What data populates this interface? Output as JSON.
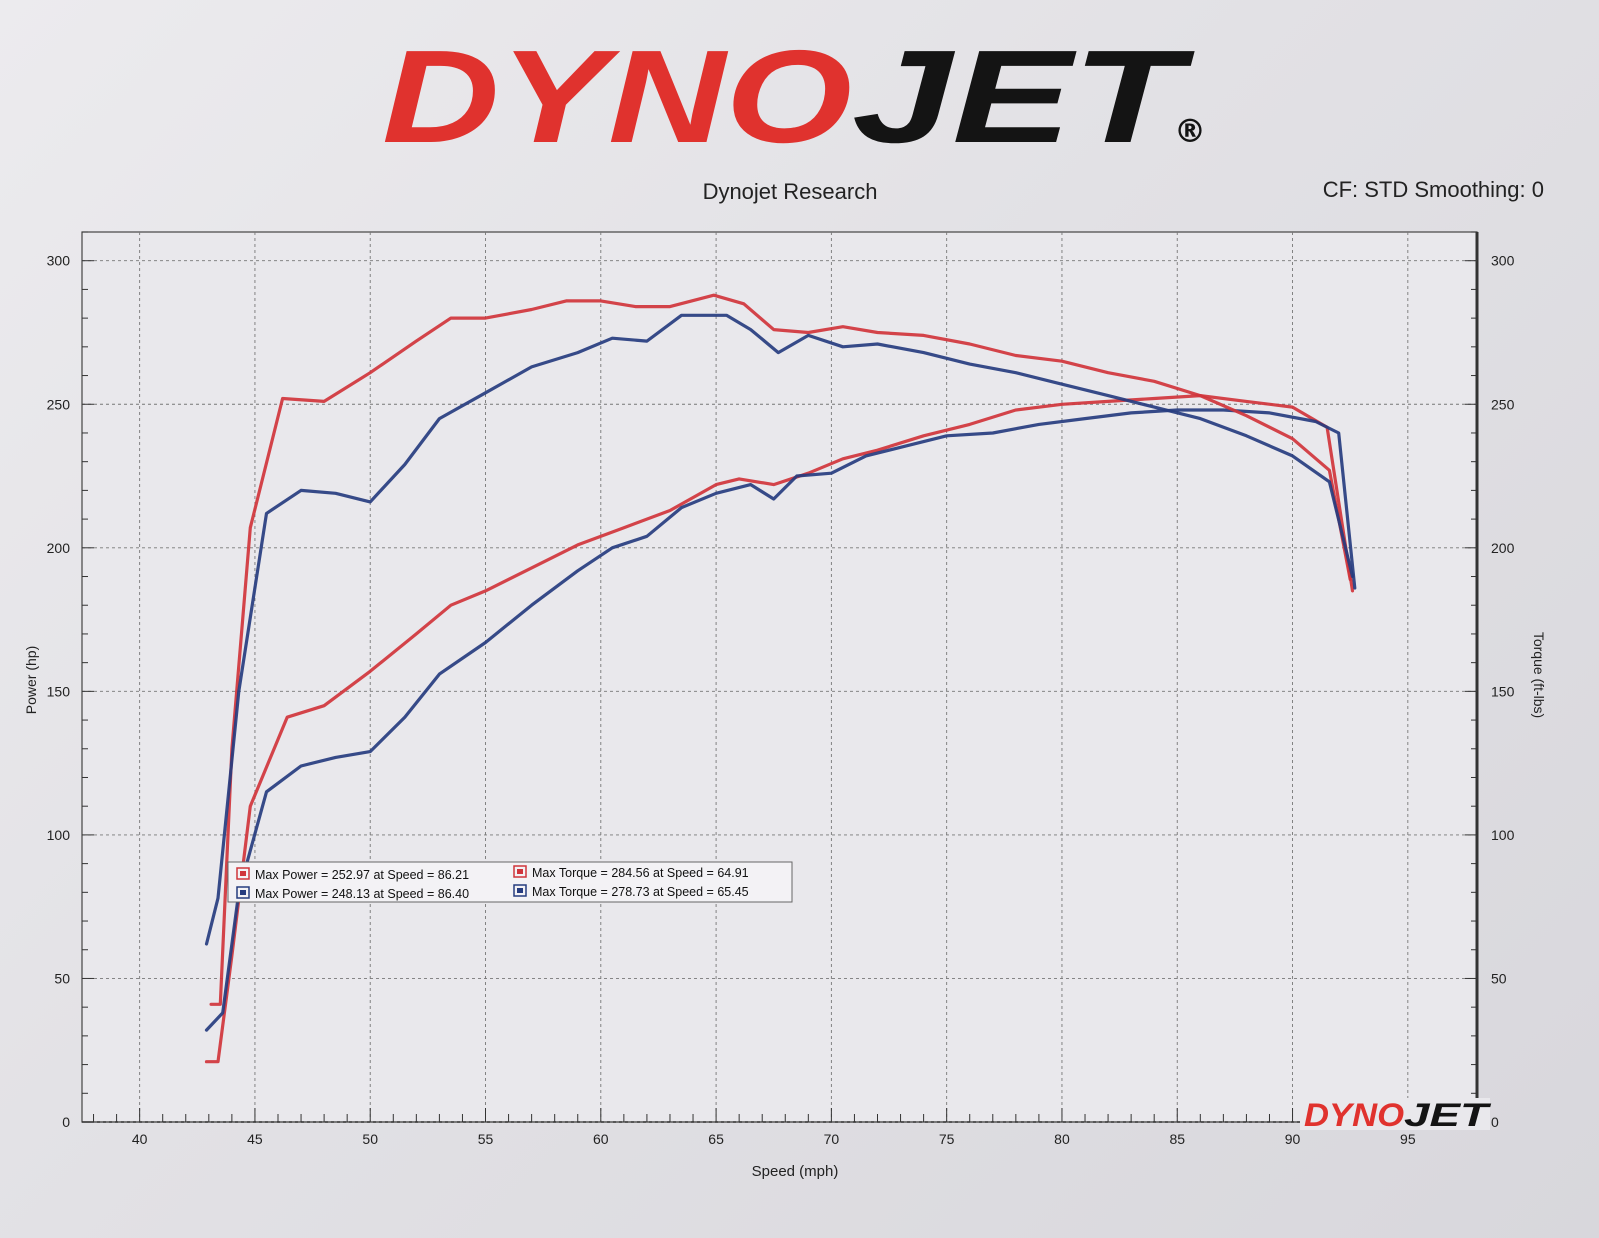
{
  "header": {
    "brand_left": "DYNO",
    "brand_right": "JET",
    "registered_mark": "®",
    "subtitle": "Dynojet Research",
    "settings": "CF: STD Smoothing: 0"
  },
  "footer_logo": {
    "left": "DYNO",
    "right": "JET"
  },
  "colors": {
    "red": "#d0343b",
    "blue": "#263c7f",
    "brand_red": "#e0322e",
    "brand_black": "#141414"
  },
  "chart_data": {
    "type": "line",
    "xlabel": "Speed (mph)",
    "ylabel_left": "Power (hp)",
    "ylabel_right": "Torque (ft-lbs)",
    "xlim": [
      37.5,
      98
    ],
    "ylim": [
      0,
      310
    ],
    "grid": true,
    "x_ticks": [
      40,
      45,
      50,
      55,
      60,
      65,
      70,
      75,
      80,
      85,
      90,
      95
    ],
    "y_ticks": [
      0,
      50,
      100,
      150,
      200,
      250,
      300
    ],
    "legend": {
      "placement": "center-left",
      "entries": [
        {
          "text": "Max Power = 252.97 at Speed = 86.21",
          "color": "#d0343b"
        },
        {
          "text": "Max Torque = 284.56 at Speed = 64.91",
          "color": "#d0343b"
        },
        {
          "text": "Max Power = 248.13 at Speed = 86.40",
          "color": "#263c7f"
        },
        {
          "text": "Max Torque = 278.73 at Speed = 65.45",
          "color": "#263c7f"
        }
      ]
    },
    "series": [
      {
        "color": "#d0343b",
        "kind": "power",
        "x": [
          42.9,
          43.4,
          44.0,
          44.8,
          46.4,
          48.0,
          50.0,
          52.0,
          53.5,
          55.0,
          57.0,
          59.0,
          61.0,
          63.0,
          65.0,
          66.0,
          67.5,
          69.0,
          70.5,
          72.0,
          74.0,
          76.0,
          78.0,
          80.0,
          82.0,
          84.0,
          86.0,
          88.0,
          90.0,
          91.5,
          92.6
        ],
        "values": [
          21,
          21,
          58,
          110,
          141,
          145,
          157,
          170,
          180,
          185,
          193,
          201,
          207,
          213,
          222,
          224,
          222,
          226,
          231,
          234,
          239,
          243,
          248,
          250,
          251,
          252,
          253,
          251,
          249,
          242,
          185
        ]
      },
      {
        "color": "#263c7f",
        "kind": "power",
        "x": [
          42.9,
          43.6,
          44.3,
          45.5,
          47.0,
          48.5,
          50.0,
          51.5,
          53.0,
          55.0,
          57.0,
          59.0,
          60.5,
          62.0,
          63.5,
          65.0,
          66.5,
          67.5,
          68.5,
          70.0,
          71.5,
          73.0,
          75.0,
          77.0,
          79.0,
          81.0,
          83.0,
          85.0,
          87.0,
          89.0,
          91.0,
          92.0,
          92.7
        ],
        "values": [
          32,
          38,
          80,
          115,
          124,
          127,
          129,
          141,
          156,
          167,
          180,
          192,
          200,
          204,
          214,
          219,
          222,
          217,
          225,
          226,
          232,
          235,
          239,
          240,
          243,
          245,
          247,
          248,
          248,
          247,
          244,
          240,
          186
        ]
      },
      {
        "color": "#d0343b",
        "kind": "torque",
        "x": [
          43.1,
          43.5,
          44.0,
          44.8,
          46.2,
          48.0,
          50.0,
          52.0,
          53.5,
          55.0,
          57.0,
          58.5,
          60.0,
          61.5,
          63.0,
          64.9,
          66.2,
          67.5,
          69.0,
          70.5,
          72.0,
          74.0,
          76.0,
          78.0,
          80.0,
          82.0,
          84.0,
          86.0,
          88.0,
          90.0,
          91.6,
          92.5
        ],
        "values": [
          41,
          41,
          130,
          207,
          252,
          251,
          261,
          272,
          280,
          280,
          283,
          286,
          286,
          284,
          284,
          288,
          285,
          276,
          275,
          277,
          275,
          274,
          271,
          267,
          265,
          261,
          258,
          253,
          246,
          238,
          227,
          189
        ]
      },
      {
        "color": "#263c7f",
        "kind": "torque",
        "x": [
          42.9,
          43.4,
          44.3,
          45.5,
          47.0,
          48.5,
          50.0,
          51.5,
          53.0,
          55.0,
          57.0,
          59.0,
          60.5,
          62.0,
          63.5,
          65.45,
          66.5,
          67.7,
          69.0,
          70.5,
          72.0,
          74.0,
          76.0,
          78.0,
          80.0,
          82.0,
          84.0,
          86.0,
          88.0,
          90.0,
          91.6,
          92.6
        ],
        "values": [
          62,
          78,
          150,
          212,
          220,
          219,
          216,
          229,
          245,
          254,
          263,
          268,
          273,
          272,
          281,
          281,
          276,
          268,
          274,
          270,
          271,
          268,
          264,
          261,
          257,
          253,
          249,
          245,
          239,
          232,
          223,
          190
        ]
      }
    ]
  }
}
